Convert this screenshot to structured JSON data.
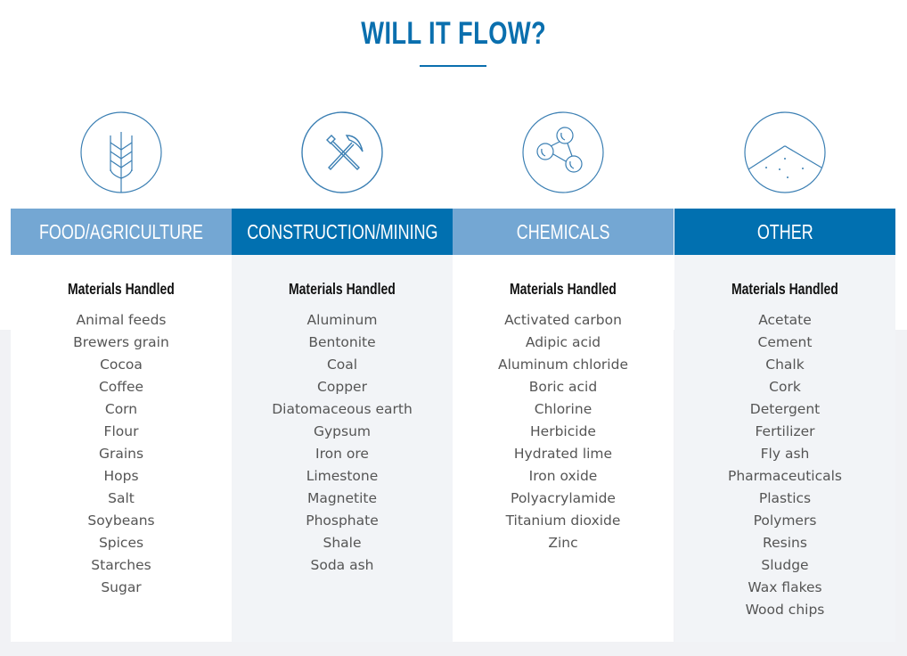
{
  "title": "WILL IT FLOW?",
  "colors": {
    "accent": "#0a6fae",
    "header_light": "#74a7d3",
    "header_dark": "#0170b0",
    "icon_stroke": "#3b7fb3"
  },
  "columns": [
    {
      "icon": "wheat-icon",
      "label": "FOOD/AGRICULTURE",
      "subheading": "Materials Handled",
      "items": [
        "Animal feeds",
        "Brewers grain",
        "Cocoa",
        "Coffee",
        "Corn",
        "Flour",
        "Grains",
        "Hops",
        "Salt",
        "Soybeans",
        "Spices",
        "Starches",
        "Sugar"
      ]
    },
    {
      "icon": "hammer-pickaxe-icon",
      "label": "CONSTRUCTION/MINING",
      "subheading": "Materials Handled",
      "items": [
        "Aluminum",
        "Bentonite",
        "Coal",
        "Copper",
        "Diatomaceous earth",
        "Gypsum",
        "Iron ore",
        "Limestone",
        "Magnetite",
        "Phosphate",
        "Shale",
        "Soda ash"
      ]
    },
    {
      "icon": "molecule-icon",
      "label": "CHEMICALS",
      "subheading": "Materials Handled",
      "items": [
        "Activated carbon",
        "Adipic acid",
        "Aluminum chloride",
        "Boric acid",
        "Chlorine",
        "Herbicide",
        "Hydrated lime",
        "Iron oxide",
        "Polyacrylamide",
        "Titanium dioxide",
        "Zinc"
      ]
    },
    {
      "icon": "powder-pile-icon",
      "label": "OTHER",
      "subheading": "Materials Handled",
      "items": [
        "Acetate",
        "Cement",
        "Chalk",
        "Cork",
        "Detergent",
        "Fertilizer",
        "Fly ash",
        "Pharmaceuticals",
        "Plastics",
        "Polymers",
        "Resins",
        "Sludge",
        "Wax flakes",
        "Wood chips"
      ]
    }
  ]
}
